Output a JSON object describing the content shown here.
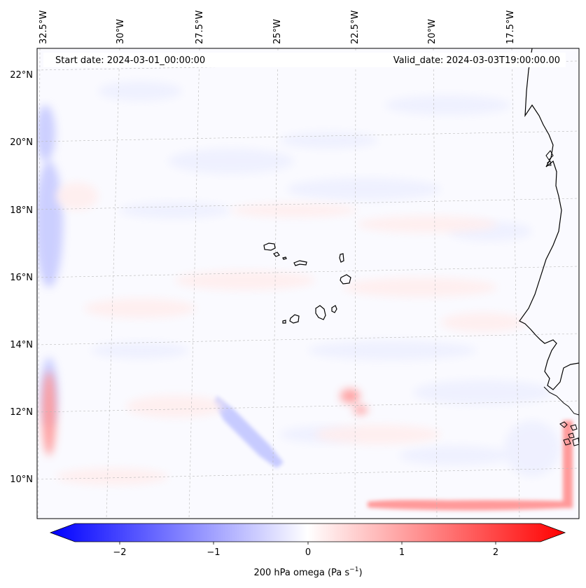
{
  "header": {
    "start_date": "Start date: 2024-03-01_00:00:00",
    "valid_date": "Valid_date: 2024-03-03T19:00:00.00"
  },
  "longitude_labels": [
    "32.5°W",
    "30°W",
    "27.5°W",
    "25°W",
    "22.5°W",
    "20°W",
    "17.5°W"
  ],
  "latitude_labels": [
    "22°N",
    "20°N",
    "18°N",
    "16°N",
    "14°N",
    "12°N",
    "10°N"
  ],
  "colorbar": {
    "ticks": [
      "−2",
      "−1",
      "0",
      "1",
      "2"
    ],
    "label": "200 hPa omega (Pa s",
    "label_exponent": "−1",
    "label_close": ")",
    "vmin": -2.6,
    "vmax": 2.6,
    "color_low": "#0000ff",
    "color_mid": "#ffffff",
    "color_high": "#ff0000"
  },
  "colors": {
    "coastline": "#000000",
    "gridline": "#b8b8b8",
    "field_weak_neg": "#eef0ff",
    "field_neg": "#c7cbff",
    "field_weak_pos": "#ffeeee",
    "field_pos": "#ff9a9a"
  }
}
